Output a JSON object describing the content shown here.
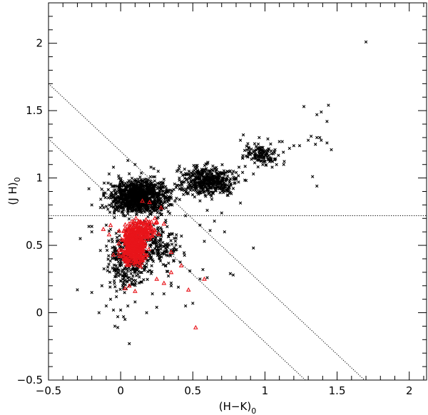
{
  "chart_data": {
    "type": "scatter",
    "title": "",
    "xlabel": "(H−K)",
    "xlabel_sub": "0",
    "ylabel": "(J  H)",
    "ylabel_sub": "0",
    "xlim": [
      -0.5,
      2.12
    ],
    "ylim": [
      -0.5,
      2.3
    ],
    "xticks": [
      -0.5,
      0,
      0.5,
      1,
      1.5,
      2
    ],
    "xtick_labels": [
      "−0.5",
      "0",
      "0.5",
      "1",
      "1.5",
      "2"
    ],
    "yticks": [
      -0.5,
      0,
      0.5,
      1,
      1.5,
      2
    ],
    "ytick_labels": [
      "−0.5",
      "0",
      "0.5",
      "1",
      "1.5",
      "2"
    ],
    "grid": false,
    "reference_lines": [
      {
        "style": "dotted",
        "points": [
          [
            -0.5,
            1.7
          ],
          [
            1.69,
            -0.5
          ]
        ]
      },
      {
        "style": "dotted",
        "points": [
          [
            -0.5,
            1.29
          ],
          [
            1.28,
            -0.5
          ]
        ]
      },
      {
        "style": "dotted",
        "points": [
          [
            -0.5,
            0.72
          ],
          [
            2.12,
            0.72
          ]
        ]
      }
    ],
    "series": [
      {
        "marker": "x",
        "color": "#000000",
        "points": [
          [
            1.7,
            2.01
          ],
          [
            1.27,
            1.53
          ],
          [
            1.36,
            1.47
          ],
          [
            1.39,
            1.49
          ],
          [
            1.44,
            1.54
          ],
          [
            1.43,
            1.42
          ],
          [
            1.32,
            1.31
          ],
          [
            1.36,
            1.3
          ],
          [
            1.38,
            1.3
          ],
          [
            1.2,
            1.24
          ],
          [
            1.17,
            1.22
          ],
          [
            1.24,
            1.24
          ],
          [
            1.3,
            1.28
          ],
          [
            1.35,
            1.25
          ],
          [
            1.39,
            1.28
          ],
          [
            1.43,
            1.26
          ],
          [
            1.1,
            1.27
          ],
          [
            1.12,
            1.27
          ],
          [
            1.02,
            1.29
          ],
          [
            0.96,
            1.3
          ],
          [
            0.85,
            1.32
          ],
          [
            0.83,
            1.28
          ],
          [
            1.07,
            1.21
          ],
          [
            1.13,
            1.1
          ],
          [
            1.46,
            1.21
          ],
          [
            1.33,
            1.01
          ],
          [
            1.36,
            0.94
          ],
          [
            1.05,
            1.08
          ],
          [
            0.92,
            1.03
          ],
          [
            0.82,
            1.08
          ],
          [
            0.8,
            1.0
          ],
          [
            0.75,
            0.9
          ],
          [
            0.7,
            0.95
          ],
          [
            0.65,
            0.97
          ],
          [
            0.55,
            0.83
          ],
          [
            0.7,
            0.74
          ],
          [
            0.76,
            0.29
          ],
          [
            0.65,
            0.68
          ],
          [
            0.55,
            0.65
          ],
          [
            0.45,
            0.72
          ],
          [
            0.58,
            0.53
          ],
          [
            0.57,
            0.32
          ],
          [
            0.6,
            0.26
          ],
          [
            0.55,
            0.25
          ],
          [
            0.48,
            0.31
          ],
          [
            0.4,
            0.19
          ],
          [
            0.35,
            0.22
          ],
          [
            0.35,
            0.2
          ],
          [
            0.3,
            0.14
          ],
          [
            0.22,
            0.14
          ],
          [
            0.18,
            0.0
          ],
          [
            0.1,
            0.08
          ],
          [
            0.03,
            -0.05
          ],
          [
            0.02,
            -0.03
          ],
          [
            0.05,
            0.05
          ],
          [
            0.0,
            0.02
          ],
          [
            -0.02,
            -0.03
          ],
          [
            -0.05,
            0.02
          ],
          [
            -0.07,
            0.1
          ],
          [
            -0.1,
            0.05
          ],
          [
            -0.13,
            0.2
          ],
          [
            -0.15,
            0.0
          ],
          [
            -0.2,
            0.15
          ],
          [
            -0.3,
            0.17
          ],
          [
            -0.28,
            0.55
          ],
          [
            -0.2,
            0.6
          ],
          [
            -0.2,
            0.64
          ],
          [
            -0.22,
            0.64
          ],
          [
            -0.14,
            0.78
          ],
          [
            -0.2,
            0.8
          ],
          [
            -0.22,
            0.92
          ],
          [
            -0.1,
            0.65
          ],
          [
            -0.08,
            1.03
          ],
          [
            -0.05,
            1.08
          ],
          [
            0.05,
            1.13
          ],
          [
            0.1,
            1.1
          ],
          [
            0.15,
            0.98
          ],
          [
            0.21,
            1.08
          ],
          [
            0.23,
            1.07
          ],
          [
            0.26,
            1.05
          ],
          [
            0.3,
            0.99
          ],
          [
            0.43,
            1.02
          ],
          [
            0.49,
            0.97
          ],
          [
            0.6,
            0.76
          ],
          [
            -0.02,
            -0.11
          ],
          [
            -0.04,
            -0.1
          ],
          [
            0.06,
            -0.23
          ],
          [
            0.25,
            0.04
          ],
          [
            0.45,
            0.05
          ],
          [
            0.5,
            0.07
          ],
          [
            0.62,
            0.61
          ],
          [
            0.72,
            0.6
          ],
          [
            0.92,
            0.48
          ],
          [
            0.78,
            0.28
          ]
        ],
        "clusters": [
          {
            "center": [
              0.13,
              0.86
            ],
            "spread": [
              0.18,
              0.11
            ],
            "count": 1100
          },
          {
            "center": [
              0.6,
              0.98
            ],
            "spread": [
              0.18,
              0.1
            ],
            "count": 480
          },
          {
            "center": [
              0.97,
              1.17
            ],
            "spread": [
              0.1,
              0.07
            ],
            "count": 130
          },
          {
            "center": [
              0.05,
              0.4
            ],
            "spread": [
              0.13,
              0.2
            ],
            "count": 330
          },
          {
            "center": [
              0.27,
              0.5
            ],
            "spread": [
              0.13,
              0.15
            ],
            "count": 180
          }
        ]
      },
      {
        "marker": "triangle",
        "color": "#e8141a",
        "points": [
          [
            0.52,
            -0.11
          ],
          [
            0.47,
            0.17
          ],
          [
            0.58,
            0.25
          ],
          [
            0.35,
            0.3
          ],
          [
            0.3,
            0.22
          ],
          [
            -0.07,
            0.65
          ],
          [
            -0.08,
            0.58
          ],
          [
            -0.12,
            0.62
          ],
          [
            -0.05,
            0.43
          ],
          [
            0.3,
            0.66
          ],
          [
            0.25,
            0.67
          ],
          [
            0.2,
            0.82
          ],
          [
            0.15,
            0.83
          ],
          [
            0.28,
            0.78
          ],
          [
            0.35,
            0.45
          ],
          [
            0.42,
            0.35
          ],
          [
            0.25,
            0.25
          ],
          [
            0.03,
            0.18
          ],
          [
            0.1,
            0.16
          ],
          [
            0.06,
            0.2
          ]
        ],
        "clusters": [
          {
            "center": [
              0.09,
              0.5
            ],
            "spread": [
              0.07,
              0.12
            ],
            "count": 420
          },
          {
            "center": [
              0.16,
              0.62
            ],
            "spread": [
              0.09,
              0.07
            ],
            "count": 120
          }
        ]
      }
    ]
  }
}
